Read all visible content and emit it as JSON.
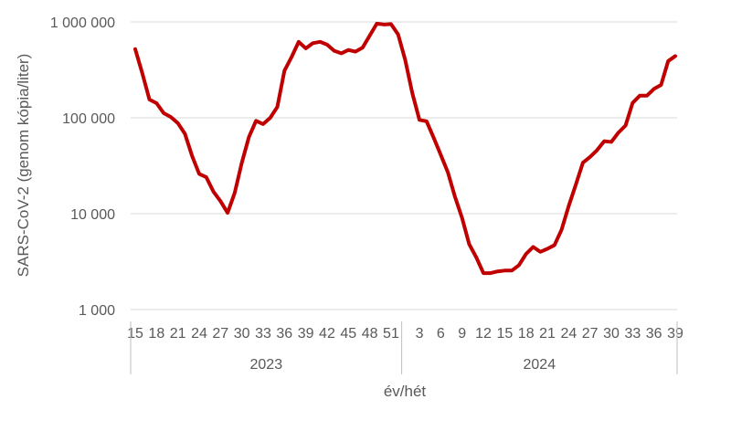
{
  "chart_data": {
    "type": "line",
    "xlabel": "év/hét",
    "ylabel": "SARS-CoV-2 (genom kópia/liter)",
    "y_scale": "log",
    "ylim": [
      1000,
      1000000
    ],
    "y_ticks": [
      {
        "value": 1000,
        "label": "1 000"
      },
      {
        "value": 10000,
        "label": "10 000"
      },
      {
        "value": 100000,
        "label": "100 000"
      },
      {
        "value": 1000000,
        "label": "1 000 000"
      }
    ],
    "grid": true,
    "legend": "none",
    "line_color": "#C00000",
    "years": [
      {
        "label": "2023",
        "weeks": [
          15,
          16,
          17,
          18,
          19,
          20,
          21,
          22,
          23,
          24,
          25,
          26,
          27,
          28,
          29,
          30,
          31,
          32,
          33,
          34,
          35,
          36,
          37,
          38,
          39,
          40,
          41,
          42,
          43,
          44,
          45,
          46,
          47,
          48,
          49,
          50,
          51,
          52
        ]
      },
      {
        "label": "2024",
        "weeks": [
          1,
          2,
          3,
          4,
          5,
          6,
          7,
          8,
          9,
          10,
          11,
          12,
          13,
          14,
          15,
          16,
          17,
          18,
          19,
          20,
          21,
          22,
          23,
          24,
          25,
          26,
          27,
          28,
          29,
          30,
          31,
          32,
          33,
          34,
          35,
          36,
          37,
          38,
          39
        ]
      }
    ],
    "x_tick_labels": [
      {
        "year": "2023",
        "week": 15,
        "label": "15"
      },
      {
        "year": "2023",
        "week": 18,
        "label": "18"
      },
      {
        "year": "2023",
        "week": 21,
        "label": "21"
      },
      {
        "year": "2023",
        "week": 24,
        "label": "24"
      },
      {
        "year": "2023",
        "week": 27,
        "label": "27"
      },
      {
        "year": "2023",
        "week": 30,
        "label": "30"
      },
      {
        "year": "2023",
        "week": 33,
        "label": "33"
      },
      {
        "year": "2023",
        "week": 36,
        "label": "36"
      },
      {
        "year": "2023",
        "week": 39,
        "label": "39"
      },
      {
        "year": "2023",
        "week": 42,
        "label": "42"
      },
      {
        "year": "2023",
        "week": 45,
        "label": "45"
      },
      {
        "year": "2023",
        "week": 48,
        "label": "48"
      },
      {
        "year": "2023",
        "week": 51,
        "label": "51"
      },
      {
        "year": "2024",
        "week": 3,
        "label": "3"
      },
      {
        "year": "2024",
        "week": 6,
        "label": "6"
      },
      {
        "year": "2024",
        "week": 9,
        "label": "9"
      },
      {
        "year": "2024",
        "week": 12,
        "label": "12"
      },
      {
        "year": "2024",
        "week": 15,
        "label": "15"
      },
      {
        "year": "2024",
        "week": 18,
        "label": "18"
      },
      {
        "year": "2024",
        "week": 21,
        "label": "21"
      },
      {
        "year": "2024",
        "week": 24,
        "label": "24"
      },
      {
        "year": "2024",
        "week": 27,
        "label": "27"
      },
      {
        "year": "2024",
        "week": 30,
        "label": "30"
      },
      {
        "year": "2024",
        "week": 33,
        "label": "33"
      },
      {
        "year": "2024",
        "week": 36,
        "label": "36"
      },
      {
        "year": "2024",
        "week": 39,
        "label": "39"
      }
    ],
    "values": [
      520000,
      290000,
      155000,
      142000,
      112000,
      102000,
      88000,
      68000,
      40000,
      26000,
      24000,
      17000,
      13500,
      10200,
      16500,
      34000,
      63000,
      93000,
      86000,
      100000,
      130000,
      310000,
      430000,
      620000,
      530000,
      600000,
      620000,
      580000,
      500000,
      470000,
      510000,
      490000,
      540000,
      720000,
      960000,
      940000,
      950000,
      740000,
      400000,
      180000,
      95000,
      92000,
      62000,
      41000,
      27000,
      15000,
      9000,
      4800,
      3500,
      2400,
      2400,
      2500,
      2550,
      2550,
      2900,
      3800,
      4500,
      4000,
      4300,
      4700,
      6800,
      12000,
      20000,
      34000,
      39000,
      46000,
      57000,
      56000,
      70000,
      83000,
      143000,
      170000,
      170000,
      200000,
      220000,
      390000,
      440000
    ]
  }
}
